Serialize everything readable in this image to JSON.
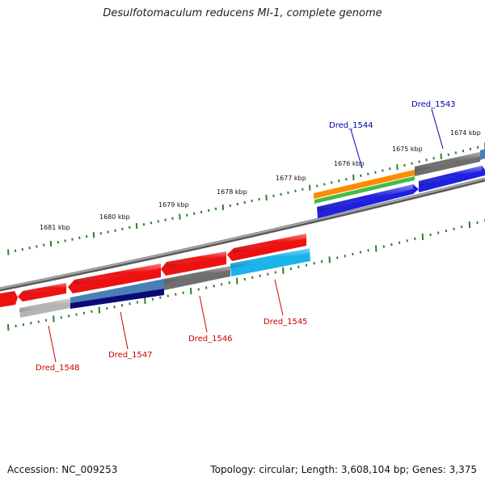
{
  "title": "Desulfotomaculum reducens MI-1, complete genome",
  "footer": {
    "accession": "Accession: NC_009253",
    "topology": "Topology: circular; Length: 3,608,104 bp; Genes: 3,375"
  },
  "colors": {
    "backbone": "#888888",
    "tick": "#2e7d32",
    "label_upper": "#0000aa",
    "label_lower": "#cc0000",
    "red": "#ee1111",
    "blue": "#1f1fe0",
    "grey": "#707070",
    "orange": "#ff8c00",
    "green": "#44bb44",
    "cyan": "#19b4ec",
    "steel": "#4a7fb5",
    "navy": "#0a0a7a",
    "silver": "#b5b5b5"
  },
  "ruler": [
    "1681 kbp",
    "1680 kbp",
    "1679 kbp",
    "1678 kbp",
    "1677 kbp",
    "1676 kbp",
    "1675 kbp",
    "1674 kbp"
  ],
  "genes": [
    {
      "name": "Dred_1543",
      "strand": "upper"
    },
    {
      "name": "Dred_1544",
      "strand": "upper"
    },
    {
      "name": "Dred_1545",
      "strand": "lower"
    },
    {
      "name": "Dred_1546",
      "strand": "lower"
    },
    {
      "name": "Dred_1547",
      "strand": "lower"
    },
    {
      "name": "Dred_1548",
      "strand": "lower"
    }
  ]
}
